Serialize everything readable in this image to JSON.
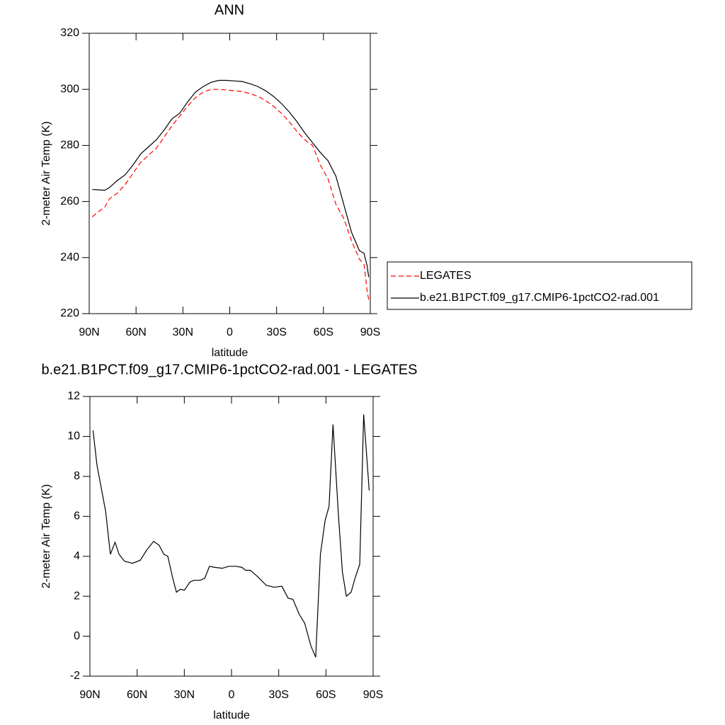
{
  "chart_data": [
    {
      "type": "line",
      "title": "ANN",
      "xlabel": "latitude",
      "ylabel": "2-meter Air Temp (K)",
      "x": [
        88,
        85,
        80,
        77,
        72,
        67,
        62,
        57,
        52,
        47,
        42,
        37,
        32,
        27,
        22,
        17,
        12,
        7,
        2,
        -3,
        -8,
        -13,
        -18,
        -23,
        -28,
        -33,
        -38,
        -43,
        -48,
        -53,
        -58,
        -63,
        -68,
        -73,
        -78,
        -83,
        -86,
        -88,
        -89
      ],
      "series": [
        {
          "name": "LEGATES",
          "color": "#ff0000",
          "dashed": true,
          "values": [
            254.5,
            256,
            258,
            261,
            263,
            266,
            270,
            274,
            276.5,
            279,
            283,
            287,
            290.5,
            294,
            297,
            299,
            300,
            300,
            299.8,
            299.5,
            299.2,
            298.5,
            297.5,
            296,
            294,
            291.5,
            288.5,
            285,
            282,
            280,
            273,
            268,
            259,
            254,
            246,
            239.5,
            237.5,
            228,
            225
          ]
        },
        {
          "name": "b.e21.B1PCT.f09_g17.CMIP6-1pctCO2-rad.001",
          "color": "#000000",
          "dashed": false,
          "values": [
            264.3,
            264.2,
            264,
            265,
            267.5,
            269.5,
            273,
            277,
            279.5,
            282,
            285.5,
            289.5,
            291.5,
            295.5,
            299,
            301,
            302.5,
            303.2,
            303.2,
            303,
            302.8,
            302,
            301,
            299.5,
            297.5,
            295,
            292,
            288.5,
            284.5,
            281,
            277.5,
            274.5,
            269,
            259,
            249,
            242.5,
            241.5,
            237,
            233
          ]
        }
      ],
      "xlim": [
        90,
        -90
      ],
      "ylim": [
        220,
        320
      ],
      "xticks": [
        {
          "value": 90,
          "label": "90N"
        },
        {
          "value": 60,
          "label": "60N"
        },
        {
          "value": 30,
          "label": "30N"
        },
        0,
        {
          "value": -30,
          "label": "30S"
        },
        {
          "value": -60,
          "label": "60S"
        },
        {
          "value": -90,
          "label": "90S"
        }
      ],
      "yticks": [
        220,
        240,
        260,
        280,
        300,
        320
      ]
    },
    {
      "type": "line",
      "title": "b.e21.B1PCT.f09_g17.CMIP6-1pctCO2-rad.001 - LEGATES",
      "xlabel": "latitude",
      "ylabel": "2-meter Air Temp (K)",
      "x": [
        88,
        85.5,
        80,
        77,
        74,
        71.5,
        68,
        63,
        58,
        54,
        49.5,
        46,
        43,
        40.5,
        37.5,
        35,
        32.5,
        30,
        26.5,
        24,
        20,
        17,
        14,
        11,
        6,
        1.5,
        -2.5,
        -6.5,
        -9,
        -12,
        -17,
        -22,
        -27,
        -32,
        -36,
        -39,
        -43,
        -46.5,
        -50.5,
        -53.5,
        -56.5,
        -59.5,
        -62,
        -64.5,
        -68,
        -70.5,
        -73,
        -76,
        -78.5,
        -81.5,
        -84,
        -87.5
      ],
      "values": [
        10.3,
        8.55,
        6.25,
        4.1,
        4.7,
        4.1,
        3.75,
        3.65,
        3.8,
        4.3,
        4.75,
        4.55,
        4.1,
        4.0,
        2.95,
        2.2,
        2.35,
        2.3,
        2.7,
        2.8,
        2.8,
        2.9,
        3.5,
        3.45,
        3.4,
        3.5,
        3.5,
        3.45,
        3.3,
        3.3,
        2.95,
        2.55,
        2.45,
        2.5,
        1.9,
        1.85,
        1.1,
        0.65,
        -0.5,
        -1.05,
        4.1,
        5.8,
        6.5,
        10.6,
        6.0,
        3.2,
        2.0,
        2.2,
        2.9,
        3.6,
        11.1,
        7.3
      ],
      "color": "#000000",
      "xlim": [
        90,
        -90
      ],
      "ylim": [
        -2,
        12
      ],
      "xticks": [
        {
          "value": 90,
          "label": "90N"
        },
        {
          "value": 60,
          "label": "60N"
        },
        {
          "value": 30,
          "label": "30N"
        },
        0,
        {
          "value": -30,
          "label": "30S"
        },
        {
          "value": -60,
          "label": "60S"
        },
        {
          "value": -90,
          "label": "90S"
        }
      ],
      "yticks": [
        -2,
        0,
        2,
        4,
        6,
        8,
        10,
        12
      ]
    }
  ]
}
